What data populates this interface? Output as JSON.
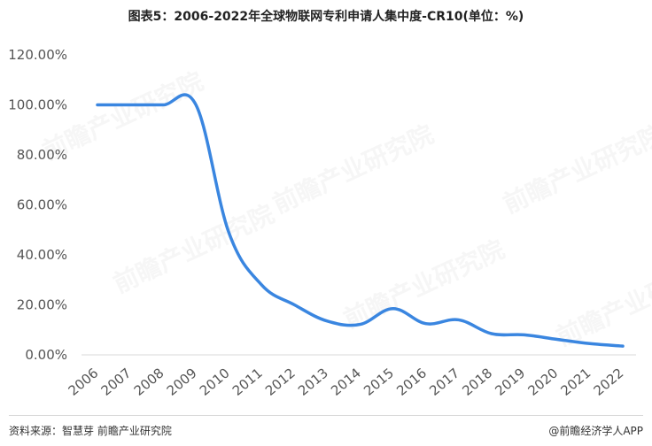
{
  "chart_data": {
    "type": "line",
    "title": "图表5：2006-2022年全球物联网专利申请人集中度-CR10(单位：%)",
    "categories": [
      "2006",
      "2007",
      "2008",
      "2009",
      "2010",
      "2011",
      "2012",
      "2013",
      "2014",
      "2015",
      "2016",
      "2017",
      "2018",
      "2019",
      "2020",
      "2021",
      "2022"
    ],
    "series": [
      {
        "values": [
          100,
          100,
          100,
          100,
          49,
          28,
          20,
          13.5,
          12.2,
          18.5,
          12.5,
          14,
          8.5,
          8,
          6.2,
          4.5,
          3.5
        ]
      }
    ],
    "y_ticks": [
      "0.00%",
      "20.00%",
      "40.00%",
      "60.00%",
      "80.00%",
      "100.00%",
      "120.00%"
    ],
    "ylim": [
      0,
      120
    ],
    "grid": false,
    "smooth": true,
    "line_color": "#3a86e0"
  },
  "footer": {
    "source": "资料来源：智慧芽 前瞻产业研究院",
    "brand": "@前瞻经济学人APP"
  },
  "watermark": {
    "text": "前瞻产业研究院"
  }
}
